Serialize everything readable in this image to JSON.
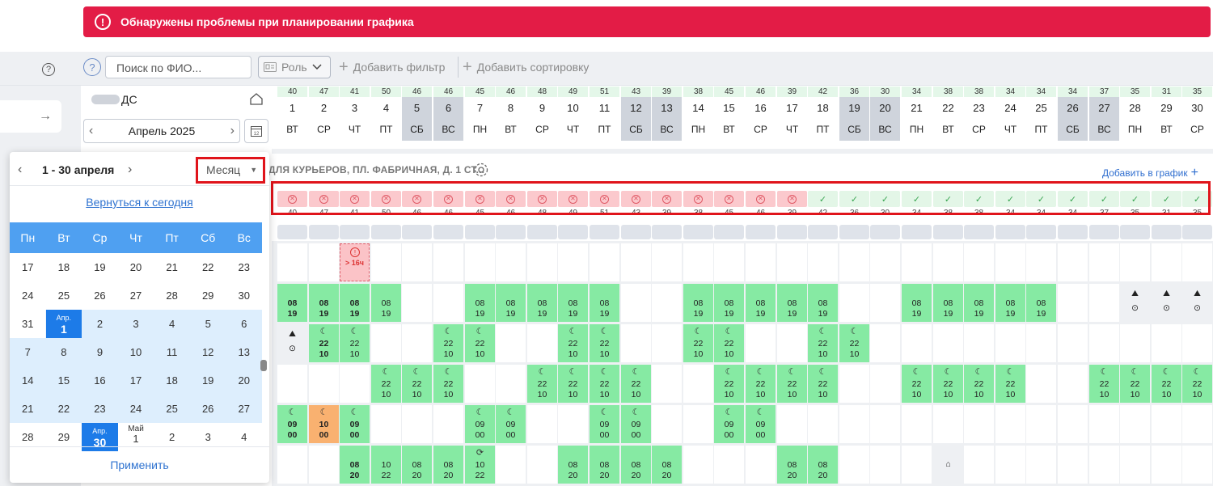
{
  "alert": {
    "text": "Обнаружены проблемы при планировании графика",
    "icon": "exclamation-icon",
    "color": "#e31c46"
  },
  "toolbar": {
    "search_placeholder": "Поиск по ФИО...",
    "role_label": "Роль",
    "add_filter": "Добавить фильтр",
    "add_sort": "Добавить сортировку"
  },
  "department": {
    "name_suffix": "ДС",
    "month_label": "Апрель 2025"
  },
  "days": [
    {
      "n": "1",
      "w": "ВТ",
      "c": "40"
    },
    {
      "n": "2",
      "w": "СР",
      "c": "47"
    },
    {
      "n": "3",
      "w": "ЧТ",
      "c": "41"
    },
    {
      "n": "4",
      "w": "ПТ",
      "c": "50"
    },
    {
      "n": "5",
      "w": "СБ",
      "c": "46",
      "we": true
    },
    {
      "n": "6",
      "w": "ВС",
      "c": "46",
      "we": true
    },
    {
      "n": "7",
      "w": "ПН",
      "c": "45"
    },
    {
      "n": "8",
      "w": "ВТ",
      "c": "46"
    },
    {
      "n": "9",
      "w": "СР",
      "c": "48"
    },
    {
      "n": "10",
      "w": "ЧТ",
      "c": "49"
    },
    {
      "n": "11",
      "w": "ПТ",
      "c": "51"
    },
    {
      "n": "12",
      "w": "СБ",
      "c": "43",
      "we": true
    },
    {
      "n": "13",
      "w": "ВС",
      "c": "39",
      "we": true
    },
    {
      "n": "14",
      "w": "ПН",
      "c": "38"
    },
    {
      "n": "15",
      "w": "ВТ",
      "c": "45"
    },
    {
      "n": "16",
      "w": "СР",
      "c": "46"
    },
    {
      "n": "17",
      "w": "ЧТ",
      "c": "39"
    },
    {
      "n": "18",
      "w": "ПТ",
      "c": "42"
    },
    {
      "n": "19",
      "w": "СБ",
      "c": "36",
      "we": true
    },
    {
      "n": "20",
      "w": "ВС",
      "c": "30",
      "we": true
    },
    {
      "n": "21",
      "w": "ПН",
      "c": "34"
    },
    {
      "n": "22",
      "w": "ВТ",
      "c": "38"
    },
    {
      "n": "23",
      "w": "СР",
      "c": "38"
    },
    {
      "n": "24",
      "w": "ЧТ",
      "c": "34"
    },
    {
      "n": "25",
      "w": "ПТ",
      "c": "34"
    },
    {
      "n": "26",
      "w": "СБ",
      "c": "34",
      "we": true
    },
    {
      "n": "27",
      "w": "ВС",
      "c": "37",
      "we": true
    },
    {
      "n": "28",
      "w": "ПН",
      "c": "35"
    },
    {
      "n": "29",
      "w": "ВТ",
      "c": "31"
    },
    {
      "n": "30",
      "w": "СР",
      "c": "35"
    }
  ],
  "group": {
    "title": "ДЛЯ КУРЬЕРОВ, ПЛ. ФАБРИЧНАЯ, Д. 1 СТ...",
    "add_to_schedule": "Добавить в график"
  },
  "status": {
    "bad_days": 17,
    "ok_days": 13
  },
  "grid": {
    "error_cell": {
      "day": 3,
      "text": "> 16ч"
    },
    "rows": [
      {
        "cells": {
          "1": "08|19",
          "2": "08|19",
          "3": "08|19",
          "4": "08|19",
          "7": "08|19",
          "8": "08|19",
          "9": "08|19",
          "10": "08|19",
          "11": "08|19",
          "14": "08|19",
          "15": "08|19",
          "16": "08|19",
          "17": "08|19",
          "18": "08|19",
          "21": "08|19",
          "22": "08|19",
          "23": "08|19",
          "24": "08|19",
          "25": "08|19",
          "28": "V",
          "29": "V",
          "30": "V"
        }
      },
      {
        "cells": {
          "1": "V",
          "2": "N22|10",
          "3": "N22|10",
          "6": "N22|10",
          "7": "N22|10",
          "10": "N22|10",
          "11": "N22|10",
          "14": "N22|10",
          "15": "N22|10",
          "18": "N22|10",
          "19": "N22|10"
        }
      },
      {
        "cells": {
          "4": "N22|10",
          "5": "N22|10",
          "6": "N22|10",
          "9": "N22|10",
          "10": "N22|10",
          "11": "N22|10",
          "12": "N22|10",
          "15": "N22|10",
          "16": "N22|10",
          "17": "N22|10",
          "18": "N22|10",
          "21": "N22|10",
          "22": "N22|10",
          "23": "N22|10",
          "24": "N22|10",
          "27": "N22|10",
          "28": "N22|10",
          "29": "N22|10",
          "30": "N22|10"
        }
      },
      {
        "cells": {
          "1": "N09|00",
          "2": "NO10|00",
          "3": "N09|00",
          "7": "N09|00",
          "8": "N09|00",
          "11": "N09|00",
          "12": "N09|00",
          "15": "N09|00",
          "16": "N09|00"
        }
      },
      {
        "cells": {
          "3": "08|20",
          "4": "10|22",
          "5": "08|20",
          "6": "08|20",
          "7": "R10|22",
          "10": "08|20",
          "11": "08|20",
          "12": "08|20",
          "13": "08|20",
          "17": "08|20",
          "18": "08|20",
          "22": "H"
        }
      }
    ]
  },
  "picker": {
    "range": "1 - 30 апреля",
    "mode": "Месяц",
    "today_link": "Вернуться к сегодня",
    "weekdays": [
      "Пн",
      "Вт",
      "Ср",
      "Чт",
      "Пт",
      "Сб",
      "Вс"
    ],
    "weeks": [
      [
        "17",
        "18",
        "19",
        "20",
        "21",
        "22",
        "23"
      ],
      [
        "24",
        "25",
        "26",
        "27",
        "28",
        "29",
        "30"
      ],
      [
        "31",
        "1",
        "2",
        "3",
        "4",
        "5",
        "6"
      ],
      [
        "7",
        "8",
        "9",
        "10",
        "11",
        "12",
        "13"
      ],
      [
        "14",
        "15",
        "16",
        "17",
        "18",
        "19",
        "20"
      ],
      [
        "21",
        "22",
        "23",
        "24",
        "25",
        "26",
        "27"
      ],
      [
        "28",
        "29",
        "30",
        "1",
        "2",
        "3",
        "4"
      ]
    ],
    "apr_label": "Апр.",
    "may_label": "Май",
    "apply": "Применить"
  }
}
